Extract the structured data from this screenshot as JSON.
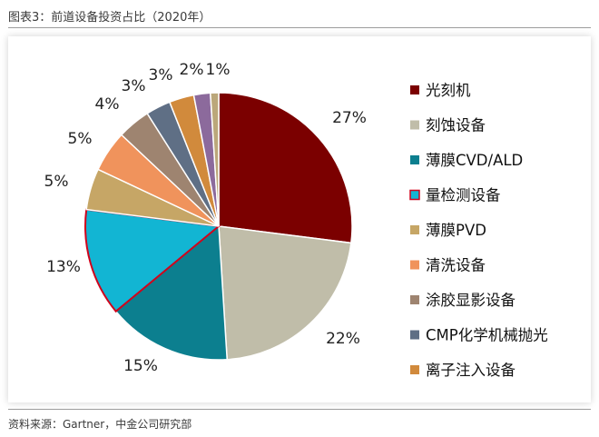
{
  "title": "图表3：前道设备投资占比（2020年）",
  "source": "资料来源：Gartner，中金公司研究部",
  "chart_data": {
    "type": "pie",
    "title": "图表3：前道设备投资占比（2020年）",
    "unit": "%",
    "legend_position": "right",
    "highlighted_slice": "量检测设备",
    "slices": [
      {
        "label": "光刻机",
        "value": 27,
        "display": "27%",
        "color": "#7b0000"
      },
      {
        "label": "刻蚀设备",
        "value": 22,
        "display": "22%",
        "color": "#c0bda9"
      },
      {
        "label": "薄膜CVD/ALD",
        "value": 15,
        "display": "15%",
        "color": "#0c7f8f"
      },
      {
        "label": "量检测设备",
        "value": 13,
        "display": "13%",
        "color": "#12b5d3"
      },
      {
        "label": "薄膜PVD",
        "value": 5,
        "display": "5%",
        "color": "#c6a666"
      },
      {
        "label": "清洗设备",
        "value": 5,
        "display": "5%",
        "color": "#f0935c"
      },
      {
        "label": "涂胶显影设备",
        "value": 4,
        "display": "4%",
        "color": "#9e8470"
      },
      {
        "label": "CMP化学机械抛光",
        "value": 3,
        "display": "3%",
        "color": "#5f6f85"
      },
      {
        "label": "离子注入设备",
        "value": 3,
        "display": "3%",
        "color": "#d18a3c"
      },
      {
        "label": "",
        "value": 2,
        "display": "2%",
        "color": "#8c6a9c"
      },
      {
        "label": "",
        "value": 1,
        "display": "1%",
        "color": "#bba77a"
      }
    ]
  }
}
